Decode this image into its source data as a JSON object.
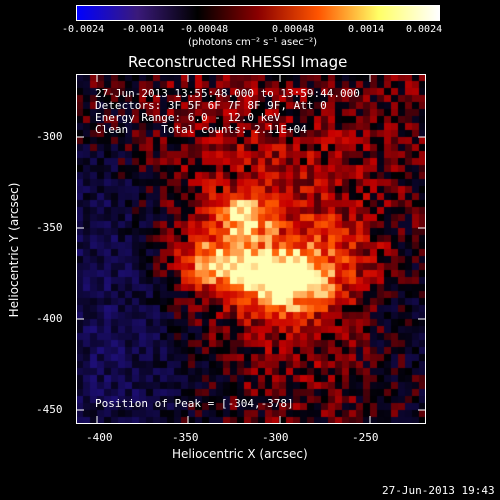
{
  "colorbar": {
    "tick_labels": [
      "-0.0024",
      "-0.0014",
      "-0.00048",
      "0.00048",
      "0.0014",
      "0.0024"
    ],
    "unit": "(photons cm⁻² s⁻¹ asec⁻²)",
    "colormap": [
      "#0000ff",
      "#3a1a7a",
      "#000000",
      "#8a0000",
      "#ff5500",
      "#ffff66",
      "#ffffff"
    ]
  },
  "title": "Reconstructed RHESSI Image",
  "info": {
    "time_range": "27-Jun-2013 13:55:48.000 to 13:59:44.000",
    "detectors": "Detectors: 3F 5F 6F 7F 8F 9F, Att 0",
    "energy": "Energy Range: 6.0 - 12.0 keV",
    "clean": "Clean     Total counts: 2.11E+04",
    "peak": "Position of Peak = [-304,-378]"
  },
  "axes": {
    "xlabel": "Heliocentric X (arcsec)",
    "ylabel": "Heliocentric Y (arcsec)",
    "xticks": [
      "-400",
      "-350",
      "-300",
      "-250"
    ],
    "yticks": [
      "-300",
      "-350",
      "-400",
      "-450"
    ]
  },
  "timestamp": "27-Jun-2013 19:43"
}
